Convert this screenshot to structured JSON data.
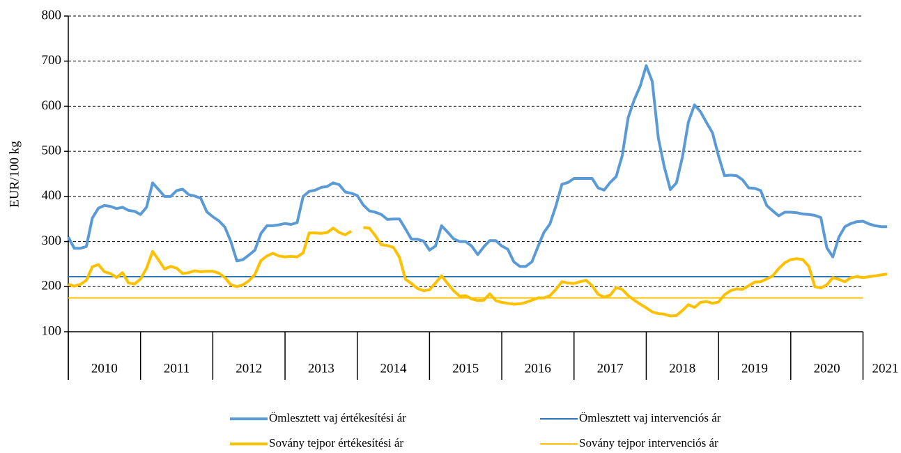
{
  "chart_data": {
    "type": "line",
    "ylabel": "EUR/100 kg",
    "xlim": [
      2010,
      2021.333
    ],
    "xticks": [
      2010,
      2011,
      2012,
      2013,
      2014,
      2015,
      2016,
      2017,
      2018,
      2019,
      2020,
      2021
    ],
    "ylim": [
      100,
      800
    ],
    "yticks": [
      100,
      200,
      300,
      400,
      500,
      600,
      700,
      800
    ],
    "grid": true,
    "legend": "bottom",
    "x": [
      2010,
      2010.083,
      2010.167,
      2010.25,
      2010.333,
      2010.417,
      2010.5,
      2010.583,
      2010.667,
      2010.75,
      2010.833,
      2010.917,
      2011,
      2011.083,
      2011.167,
      2011.25,
      2011.333,
      2011.417,
      2011.5,
      2011.583,
      2011.667,
      2011.75,
      2011.833,
      2011.917,
      2012,
      2012.083,
      2012.167,
      2012.25,
      2012.333,
      2012.417,
      2012.5,
      2012.583,
      2012.667,
      2012.75,
      2012.833,
      2012.917,
      2013,
      2013.083,
      2013.167,
      2013.25,
      2013.333,
      2013.417,
      2013.5,
      2013.583,
      2013.667,
      2013.75,
      2013.833,
      2013.917,
      2014,
      2014.083,
      2014.167,
      2014.25,
      2014.333,
      2014.417,
      2014.5,
      2014.583,
      2014.667,
      2014.75,
      2014.833,
      2014.917,
      2015,
      2015.083,
      2015.167,
      2015.25,
      2015.333,
      2015.417,
      2015.5,
      2015.583,
      2015.667,
      2015.75,
      2015.833,
      2015.917,
      2016,
      2016.083,
      2016.167,
      2016.25,
      2016.333,
      2016.417,
      2016.5,
      2016.583,
      2016.667,
      2016.75,
      2016.833,
      2016.917,
      2017,
      2017.083,
      2017.167,
      2017.25,
      2017.333,
      2017.417,
      2017.5,
      2017.583,
      2017.667,
      2017.75,
      2017.833,
      2017.917,
      2018,
      2018.083,
      2018.167,
      2018.25,
      2018.333,
      2018.417,
      2018.5,
      2018.583,
      2018.667,
      2018.75,
      2018.833,
      2018.917,
      2019,
      2019.083,
      2019.167,
      2019.25,
      2019.333,
      2019.417,
      2019.5,
      2019.583,
      2019.667,
      2019.75,
      2019.833,
      2019.917,
      2020,
      2020.083,
      2020.167,
      2020.25,
      2020.333,
      2020.417,
      2020.5,
      2020.583,
      2020.667,
      2020.75,
      2020.833,
      2020.917,
      2021,
      2021.083,
      2021.167,
      2021.25,
      2021.333
    ],
    "series": [
      {
        "name": "Ömlesztett vaj értékesítési ár",
        "color": "#5b9bd5",
        "width": 4,
        "values": [
          310,
          285,
          285,
          289,
          352,
          374,
          380,
          378,
          373,
          376,
          369,
          367,
          360,
          376,
          430,
          415,
          400,
          400,
          413,
          416,
          404,
          401,
          396,
          366,
          355,
          346,
          332,
          300,
          257,
          260,
          270,
          281,
          318,
          335,
          335,
          337,
          340,
          338,
          342,
          400,
          411,
          414,
          420,
          422,
          430,
          426,
          410,
          407,
          402,
          381,
          368,
          365,
          360,
          349,
          350,
          350,
          328,
          305,
          305,
          301,
          281,
          290,
          335,
          321,
          306,
          300,
          300,
          290,
          271,
          288,
          302,
          302,
          290,
          283,
          255,
          245,
          245,
          255,
          288,
          320,
          339,
          379,
          427,
          431,
          440,
          440,
          440,
          440,
          419,
          414,
          431,
          444,
          490,
          575,
          614,
          645,
          690,
          655,
          529,
          465,
          415,
          430,
          487,
          565,
          603,
          588,
          564,
          541,
          490,
          446,
          447,
          446,
          437,
          419,
          418,
          413,
          380,
          368,
          357,
          365,
          365,
          364,
          361,
          360,
          358,
          353,
          286,
          266,
          310,
          333,
          340,
          344,
          345,
          339,
          335,
          333,
          333
        ]
      },
      {
        "name": "Ömlesztett vaj intervenciós ár",
        "color": "#2e75b6",
        "width": 2,
        "x": [
          2010,
          2021
        ],
        "values": [
          222,
          222
        ]
      },
      {
        "name": "Sovány tejpor értékesítési ár",
        "color": "#ffc000",
        "width": 4,
        "values": [
          205,
          201,
          205,
          214,
          244,
          249,
          233,
          229,
          220,
          231,
          208,
          206,
          217,
          241,
          278,
          259,
          239,
          245,
          241,
          229,
          231,
          235,
          233,
          234,
          234,
          230,
          220,
          204,
          200,
          204,
          213,
          227,
          258,
          268,
          274,
          268,
          266,
          267,
          266,
          275,
          319,
          319,
          318,
          320,
          330,
          320,
          315,
          323,
          null,
          331,
          330,
          313,
          293,
          291,
          287,
          265,
          216,
          207,
          196,
          191,
          193,
          208,
          224,
          207,
          191,
          179,
          180,
          173,
          169,
          170,
          184,
          169,
          165,
          163,
          161,
          162,
          165,
          170,
          175,
          175,
          180,
          194,
          211,
          208,
          207,
          211,
          214,
          202,
          183,
          177,
          181,
          198,
          194,
          180,
          170,
          161,
          153,
          144,
          140,
          139,
          135,
          136,
          147,
          160,
          154,
          165,
          167,
          163,
          166,
          182,
          191,
          195,
          194,
          202,
          210,
          211,
          217,
          224,
          240,
          253,
          260,
          262,
          260,
          245,
          200,
          197,
          204,
          220,
          216,
          211,
          220,
          222,
          220,
          222,
          224,
          226,
          228
        ]
      },
      {
        "name": "Sovány tejpor intervenciós ár",
        "color": "#ffc000",
        "width": 2,
        "x": [
          2010,
          2021
        ],
        "values": [
          175,
          175
        ]
      }
    ]
  }
}
